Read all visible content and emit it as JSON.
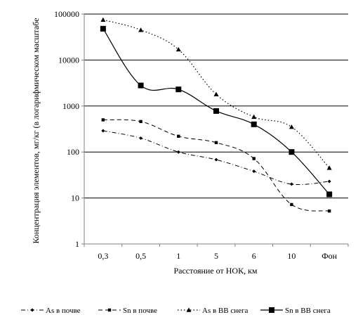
{
  "chart_data": {
    "type": "line",
    "y_scale": "log",
    "ylim": [
      1,
      100000
    ],
    "grid": "horizontal major gridlines",
    "legend_position": "bottom",
    "xlabel": "Расстояние от НОК, км",
    "ylabel": "Концентрация элементов, мг/кг (в логарифмическом масштабе",
    "categories": [
      "0,3",
      "0,5",
      "1",
      "5",
      "6",
      "10",
      "Фон"
    ],
    "y_tick_labels": [
      "1",
      "10",
      "100",
      "1000",
      "10000",
      "100000"
    ],
    "series": [
      {
        "name": "As в почве",
        "marker": "diamond",
        "line": "dash-dot",
        "values": [
          290,
          200,
          100,
          68,
          38,
          20,
          23
        ]
      },
      {
        "name": "Sn в почве",
        "marker": "small-square",
        "line": "dashed",
        "values": [
          500,
          460,
          220,
          160,
          72,
          7.2,
          5.2
        ]
      },
      {
        "name": "As в ВВ снега",
        "marker": "triangle",
        "line": "dotted",
        "values": [
          75000,
          45000,
          17000,
          1800,
          580,
          350,
          45
        ]
      },
      {
        "name": "Sn в ВВ снега",
        "marker": "square",
        "line": "solid",
        "values": [
          48000,
          2800,
          2300,
          780,
          400,
          100,
          12
        ]
      }
    ]
  }
}
